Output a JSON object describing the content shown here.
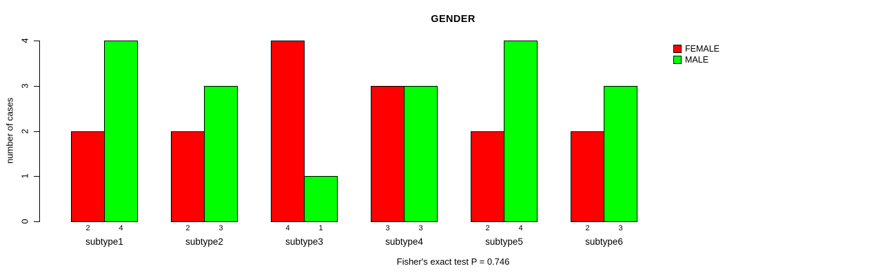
{
  "chart_data": {
    "type": "bar",
    "title": "GENDER",
    "ylabel": "number of cases",
    "xlabel": "",
    "categories": [
      "subtype1",
      "subtype2",
      "subtype3",
      "subtype4",
      "subtype5",
      "subtype6"
    ],
    "series": [
      {
        "name": "FEMALE",
        "color": "#ff0000",
        "values": [
          2,
          2,
          4,
          3,
          2,
          2
        ]
      },
      {
        "name": "MALE",
        "color": "#00ff00",
        "values": [
          4,
          3,
          1,
          3,
          4,
          3
        ]
      }
    ],
    "bar_value_labels": [
      [
        "2",
        "4"
      ],
      [
        "2",
        "3"
      ],
      [
        "4",
        "1"
      ],
      [
        "3",
        "3"
      ],
      [
        "2",
        "4"
      ],
      [
        "2",
        "3"
      ]
    ],
    "yticks": [
      0,
      1,
      2,
      3,
      4
    ],
    "ylim": [
      0,
      4
    ],
    "grid": false,
    "legend_position": "top-right",
    "footnote": "Fisher's exact test P = 0.746",
    "background": "#ffffff",
    "bar_border_color": "#000000"
  }
}
